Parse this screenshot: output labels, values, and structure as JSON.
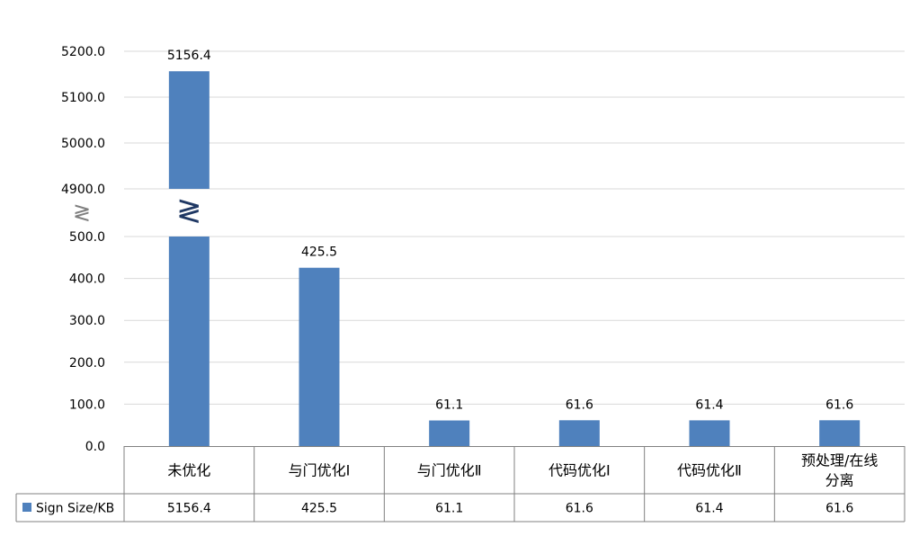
{
  "chart_data": {
    "type": "bar",
    "broken_axis": true,
    "categories": [
      "未优化",
      "与门优化Ⅰ",
      "与门优化Ⅱ",
      "代码优化Ⅰ",
      "代码优化Ⅱ",
      "预处理/在线分离"
    ],
    "category_lines": [
      [
        "未优化"
      ],
      [
        "与门优化Ⅰ"
      ],
      [
        "与门优化Ⅱ"
      ],
      [
        "代码优化Ⅰ"
      ],
      [
        "代码优化Ⅱ"
      ],
      [
        "预处理/在线",
        "分离"
      ]
    ],
    "series": [
      {
        "name": "Sign Size/KB",
        "values": [
          5156.4,
          425.5,
          61.1,
          61.6,
          61.4,
          61.6
        ],
        "color": "#4f81bd"
      }
    ],
    "data_labels": [
      "5156.4",
      "425.5",
      "61.1",
      "61.6",
      "61.4",
      "61.6"
    ],
    "lower_ticks": [
      "0.0",
      "100.0",
      "200.0",
      "300.0",
      "400.0",
      "500.0"
    ],
    "upper_ticks": [
      "4900.0",
      "5000.0",
      "5100.0",
      "5200.0"
    ],
    "lower_range": [
      0,
      500
    ],
    "upper_range": [
      4900,
      5200
    ],
    "break_symbol": "≷",
    "grid": true,
    "legend": "data-table",
    "data_table": true
  }
}
